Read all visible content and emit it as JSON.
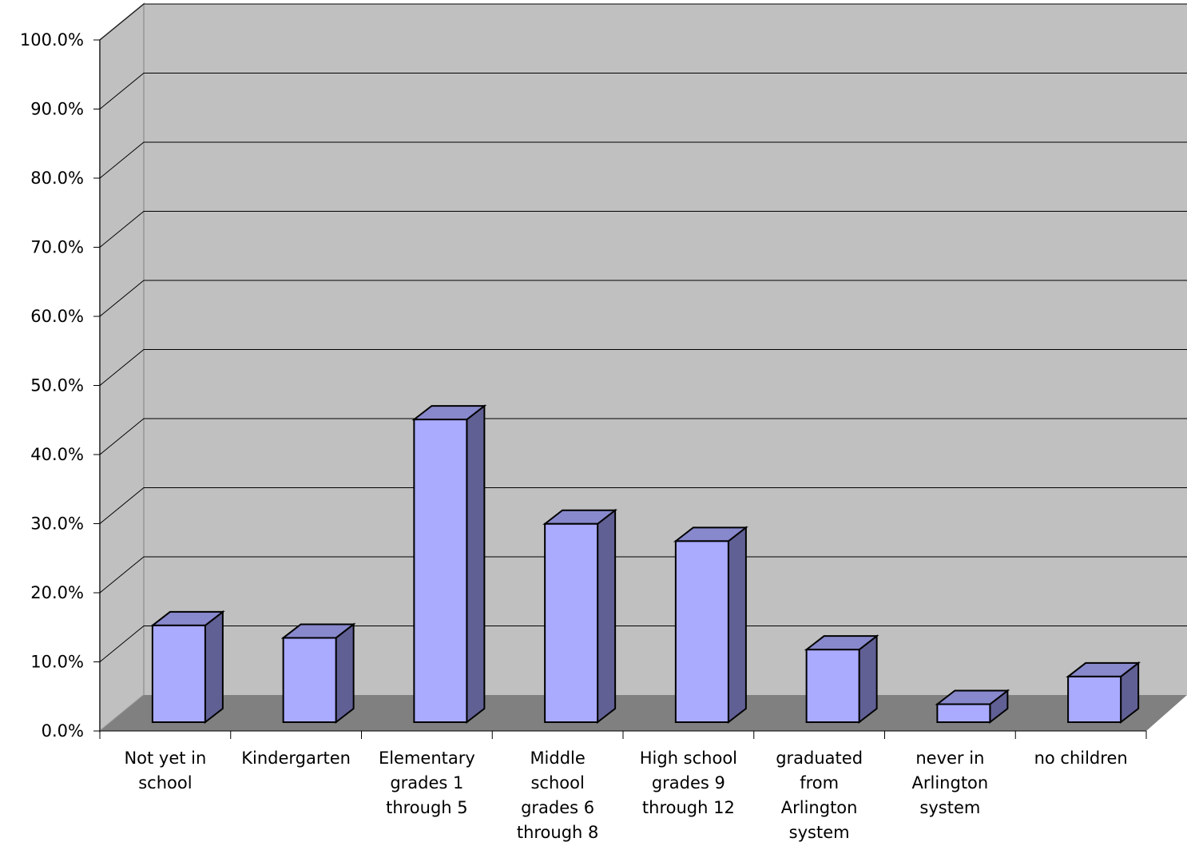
{
  "chart_data": {
    "type": "bar",
    "title": "",
    "xlabel": "",
    "ylabel": "",
    "ylim": [
      0,
      100
    ],
    "yticks": [
      "0.0%",
      "10.0%",
      "20.0%",
      "30.0%",
      "40.0%",
      "50.0%",
      "60.0%",
      "70.0%",
      "80.0%",
      "90.0%",
      "100.0%"
    ],
    "categories": [
      [
        "Not yet in",
        "school"
      ],
      [
        "Kindergarten"
      ],
      [
        "Elementary",
        "grades 1",
        "through 5"
      ],
      [
        "Middle",
        "school",
        "grades 6",
        "through 8"
      ],
      [
        "High school",
        "grades 9",
        "through 12"
      ],
      [
        "graduated",
        "from",
        "Arlington",
        "system"
      ],
      [
        "never in",
        "Arlington",
        "system"
      ],
      [
        "no children"
      ]
    ],
    "values": [
      14.0,
      12.2,
      43.8,
      28.7,
      26.2,
      10.5,
      2.6,
      6.6
    ],
    "grid": true,
    "style": "3d",
    "colors": {
      "bar_front": "#aaaaff",
      "bar_top": "#8888cc",
      "bar_side": "#606095",
      "back_wall": "#c0c0c0",
      "floor": "#808080"
    }
  }
}
